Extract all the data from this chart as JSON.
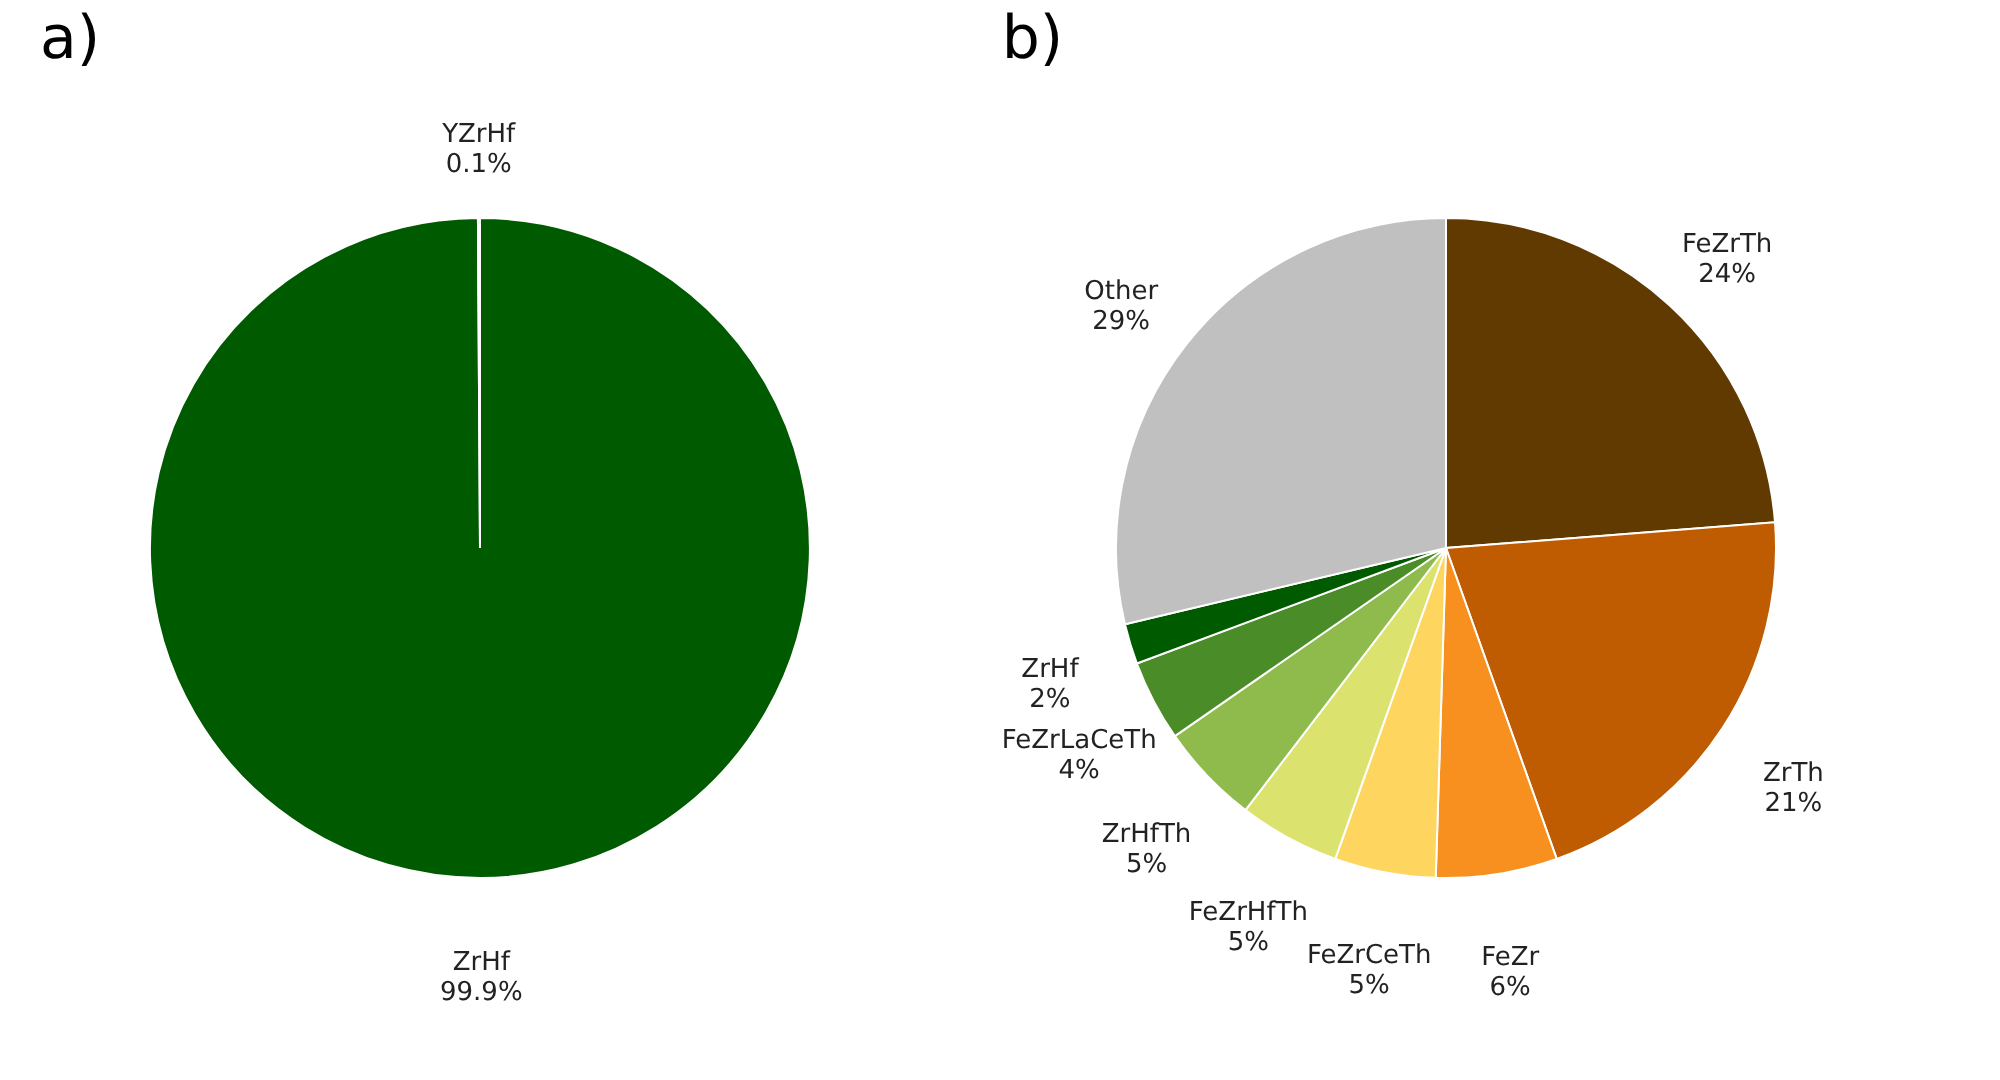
{
  "chart_data": [
    {
      "type": "pie",
      "title": "a)",
      "categories": [
        "ZrHf",
        "YZrHf"
      ],
      "values": [
        99.9,
        0.1
      ],
      "colors": [
        "#005a00",
        "#ffffff"
      ],
      "value_labels": [
        "99.9%",
        "0.1%"
      ],
      "legend": false
    },
    {
      "type": "pie",
      "title": "b)",
      "categories": [
        "FeZrTh",
        "ZrTh",
        "FeZr",
        "FeZrCeTh",
        "FeZrHfTh",
        "ZrHfTh",
        "FeZrLaCeTh",
        "ZrHf",
        "Other"
      ],
      "values": [
        24,
        21,
        6,
        5,
        5,
        5,
        4,
        2,
        29
      ],
      "colors": [
        "#603a00",
        "#bf5b00",
        "#f7901e",
        "#fdd55f",
        "#dbe36e",
        "#8fba4c",
        "#4a8c28",
        "#005a00",
        "#c0c0c0"
      ],
      "value_labels": [
        "24%",
        "21%",
        "6%",
        "5%",
        "5%",
        "5%",
        "4%",
        "2%",
        "29%"
      ],
      "legend": false
    }
  ]
}
